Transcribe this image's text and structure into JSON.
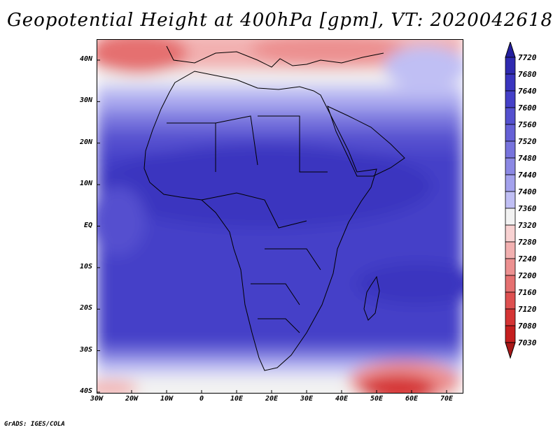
{
  "title": "Geopotential Height at 400hPa [gpm], VT: 2020042618",
  "credit": "GrADS: IGES/COLA",
  "map": {
    "lat_labels": [
      "40N",
      "30N",
      "20N",
      "10N",
      "EQ",
      "10S",
      "20S",
      "30S",
      "40S"
    ],
    "lon_labels": [
      "30W",
      "20W",
      "10W",
      "0",
      "10E",
      "20E",
      "30E",
      "40E",
      "50E",
      "60E",
      "70E"
    ],
    "extent": {
      "lon_min": -30,
      "lon_max": 75,
      "lat_min": -40,
      "lat_max": 45
    }
  },
  "colorbar": {
    "levels": [
      "7720",
      "7680",
      "7640",
      "7600",
      "7560",
      "7520",
      "7480",
      "7440",
      "7400",
      "7360",
      "7320",
      "7280",
      "7240",
      "7200",
      "7160",
      "7120",
      "7080",
      "7030"
    ],
    "colors": [
      "#241f9e",
      "#2f2ab0",
      "#3a35bf",
      "#4540c8",
      "#5450cf",
      "#6560d6",
      "#7773dd",
      "#8b88e4",
      "#a3a1ec",
      "#c0bff4",
      "#f2f2f2",
      "#f8d2d2",
      "#f2b0b0",
      "#ec9090",
      "#e57070",
      "#de5050",
      "#d53434",
      "#c51f1f",
      "#a81818"
    ]
  },
  "colors": {
    "low": "#c51f1f",
    "high": "#3a35bf",
    "neutral": "#f2f2f2"
  }
}
